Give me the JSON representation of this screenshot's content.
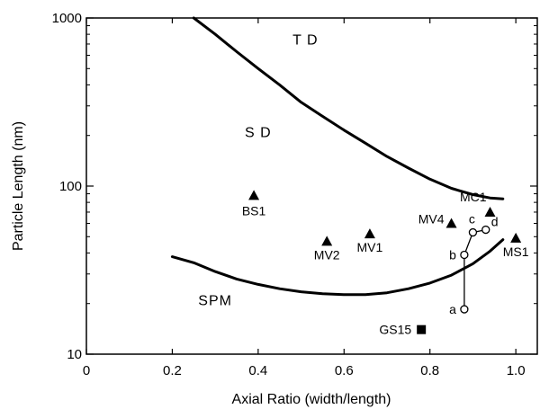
{
  "chart_data": {
    "type": "scatter",
    "title": "",
    "xlabel": "Axial Ratio (width/length)",
    "ylabel": "Particle Length (nm)",
    "xlim": [
      0,
      1.05
    ],
    "ylim": [
      10,
      1000
    ],
    "yscale": "log",
    "grid": false,
    "x_ticks": [
      0,
      0.2,
      0.4,
      0.6,
      0.8,
      1.0
    ],
    "x_tick_labels": [
      "0",
      "0.2",
      "0.4",
      "0.6",
      "0.8",
      "1.0"
    ],
    "y_ticks": [
      10,
      100,
      1000
    ],
    "y_tick_labels": [
      "10",
      "100",
      "1000"
    ],
    "region_labels": [
      {
        "text": "T D",
        "x": 0.51,
        "y": 750
      },
      {
        "text": "S D",
        "x": 0.4,
        "y": 210
      },
      {
        "text": "SPM",
        "x": 0.3,
        "y": 21
      }
    ],
    "boundary_curves": [
      {
        "points": [
          [
            0.25,
            1000
          ],
          [
            0.3,
            800
          ],
          [
            0.35,
            630
          ],
          [
            0.4,
            500
          ],
          [
            0.45,
            400
          ],
          [
            0.5,
            315
          ],
          [
            0.55,
            260
          ],
          [
            0.6,
            215
          ],
          [
            0.65,
            180
          ],
          [
            0.7,
            150
          ],
          [
            0.75,
            128
          ],
          [
            0.8,
            110
          ],
          [
            0.85,
            97
          ],
          [
            0.9,
            89
          ],
          [
            0.94,
            85
          ],
          [
            0.97,
            84
          ]
        ]
      },
      {
        "points": [
          [
            0.2,
            38
          ],
          [
            0.25,
            35
          ],
          [
            0.3,
            31
          ],
          [
            0.35,
            28
          ],
          [
            0.4,
            26
          ],
          [
            0.45,
            24.5
          ],
          [
            0.5,
            23.5
          ],
          [
            0.55,
            22.9
          ],
          [
            0.6,
            22.6
          ],
          [
            0.65,
            22.6
          ],
          [
            0.7,
            23.2
          ],
          [
            0.75,
            24.5
          ],
          [
            0.8,
            26.5
          ],
          [
            0.85,
            29.5
          ],
          [
            0.9,
            34.5
          ],
          [
            0.94,
            41
          ],
          [
            0.97,
            48
          ]
        ]
      }
    ],
    "series": [
      {
        "marker": "triangle",
        "points": [
          {
            "label": "BS1",
            "x": 0.39,
            "y": 88
          },
          {
            "label": "MV2",
            "x": 0.56,
            "y": 47
          },
          {
            "label": "MV1",
            "x": 0.66,
            "y": 52
          },
          {
            "label": "MV4",
            "x": 0.85,
            "y": 60
          },
          {
            "label": "MC1",
            "x": 0.94,
            "y": 70
          },
          {
            "label": "MS1",
            "x": 1.0,
            "y": 49
          }
        ]
      },
      {
        "marker": "square",
        "points": [
          {
            "label": "GS15",
            "x": 0.78,
            "y": 14
          }
        ]
      },
      {
        "marker": "open-circle",
        "connected": true,
        "points": [
          {
            "label": "a",
            "x": 0.88,
            "y": 18.5
          },
          {
            "label": "b",
            "x": 0.88,
            "y": 39
          },
          {
            "label": "c",
            "x": 0.9,
            "y": 53
          },
          {
            "label": "d",
            "x": 0.93,
            "y": 55
          }
        ]
      }
    ]
  }
}
